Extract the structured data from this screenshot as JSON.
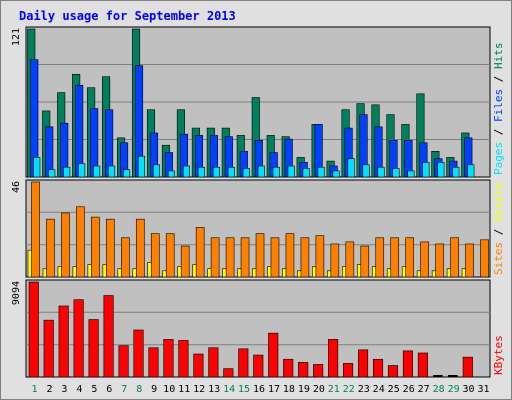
{
  "chart_data": {
    "type": "bar",
    "title": "Daily usage for September 2013",
    "days": [
      "1",
      "2",
      "3",
      "4",
      "5",
      "6",
      "7",
      "8",
      "9",
      "10",
      "11",
      "12",
      "13",
      "14",
      "15",
      "16",
      "17",
      "18",
      "19",
      "20",
      "21",
      "22",
      "23",
      "24",
      "25",
      "26",
      "27",
      "28",
      "29",
      "30",
      "31"
    ],
    "weekend_days": [
      "1",
      "7",
      "8",
      "14",
      "15",
      "21",
      "22",
      "28",
      "29"
    ],
    "panels": [
      {
        "id": "hits_files_pages",
        "ymax": 121,
        "max_label": "121",
        "side_label": [
          {
            "text": "Hits",
            "color": "#00805c"
          },
          {
            "text": " / ",
            "color": "#000000"
          },
          {
            "text": "Files",
            "color": "#0040ff"
          },
          {
            "text": " / ",
            "color": "#000000"
          },
          {
            "text": "Pages",
            "color": "#00e0ff"
          }
        ],
        "series": [
          {
            "name": "Hits",
            "color": "#00805c",
            "values": [
              121,
              54,
              69,
              84,
              73,
              82,
              32,
              121,
              55,
              26,
              55,
              40,
              40,
              40,
              34,
              65,
              34,
              33,
              16,
              43,
              13,
              55,
              60,
              59,
              51,
              43,
              68,
              21,
              16,
              36,
              0
            ]
          },
          {
            "name": "Files",
            "color": "#0040ff",
            "values": [
              96,
              41,
              44,
              75,
              56,
              55,
              28,
              91,
              36,
              20,
              35,
              34,
              34,
              33,
              21,
              30,
              20,
              31,
              12,
              43,
              9,
              40,
              51,
              41,
              30,
              30,
              28,
              15,
              13,
              32,
              0
            ]
          },
          {
            "name": "Pages",
            "color": "#00e0ff",
            "values": [
              16,
              6,
              8,
              11,
              9,
              9,
              6,
              17,
              10,
              5,
              9,
              8,
              8,
              8,
              7,
              9,
              8,
              9,
              7,
              8,
              5,
              15,
              10,
              8,
              7,
              5,
              12,
              12,
              8,
              10,
              0
            ]
          }
        ]
      },
      {
        "id": "visits_sites",
        "ymax": 46,
        "max_label": "46",
        "side_label": [
          {
            "text": "Visits",
            "color": "#ffff00"
          },
          {
            "text": " / ",
            "color": "#000000"
          },
          {
            "text": "Sites",
            "color": "#ff8000"
          }
        ],
        "series": [
          {
            "name": "Sites",
            "color": "#ff8000",
            "values": [
              46,
              28,
              31,
              34,
              29,
              28,
              19,
              28,
              21,
              21,
              15,
              24,
              19,
              19,
              19,
              21,
              19,
              21,
              19,
              20,
              16,
              17,
              15,
              19,
              19,
              19,
              17,
              16,
              19,
              16,
              18
            ]
          },
          {
            "name": "Visits",
            "color": "#ffff00",
            "values": [
              13,
              4,
              5,
              5,
              6,
              6,
              4,
              4,
              7,
              3,
              5,
              6,
              4,
              4,
              4,
              4,
              5,
              4,
              3,
              5,
              3,
              5,
              6,
              5,
              4,
              5,
              3,
              3,
              4,
              4,
              0
            ]
          }
        ]
      },
      {
        "id": "kbytes",
        "ymax": 9094,
        "max_label": "9094",
        "side_label": [
          {
            "text": "KBytes",
            "color": "#ff0000"
          }
        ],
        "series": [
          {
            "name": "KBytes",
            "color": "#ff0000",
            "values": [
              9094,
              5440,
              6800,
              7400,
              5500,
              7800,
              3000,
              4500,
              2800,
              3600,
              3500,
              2200,
              2800,
              800,
              2700,
              2100,
              4200,
              1700,
              1400,
              1200,
              3600,
              1300,
              2600,
              1700,
              1100,
              2500,
              2300,
              0,
              0,
              1900,
              0
            ]
          }
        ]
      }
    ]
  }
}
